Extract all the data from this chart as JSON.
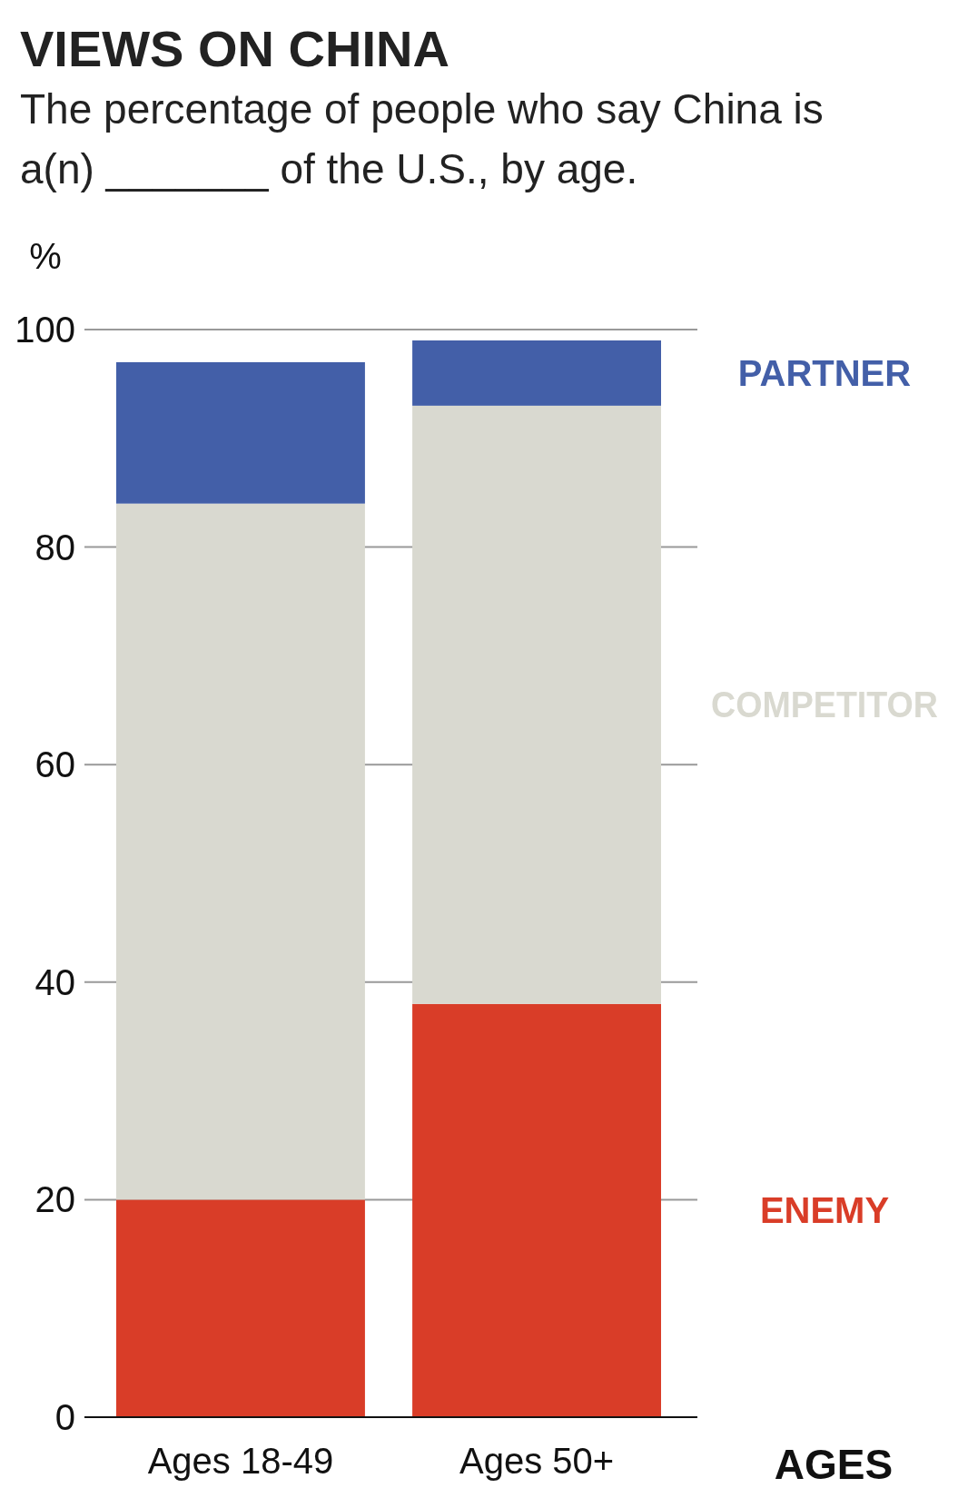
{
  "chart_data": {
    "type": "bar",
    "title": "VIEWS ON CHINA",
    "subtitle": "The percentage of people who say China is a(n) _______ of the U.S., by age.",
    "xlabel": "AGES",
    "ylabel": "%",
    "categories": [
      "Ages 18-49",
      "Ages 50+"
    ],
    "stacked": true,
    "series": [
      {
        "name": "ENEMY",
        "color": "#d93d28",
        "values": [
          20,
          38
        ]
      },
      {
        "name": "COMPETITOR",
        "color": "#d9d9d0",
        "values": [
          64,
          55
        ]
      },
      {
        "name": "PARTNER",
        "color": "#435fa8",
        "values": [
          13,
          6
        ]
      }
    ],
    "ylim": [
      0,
      100
    ],
    "yticks": [
      0,
      20,
      40,
      60,
      80,
      100
    ],
    "grid": "y",
    "legend": "right"
  }
}
